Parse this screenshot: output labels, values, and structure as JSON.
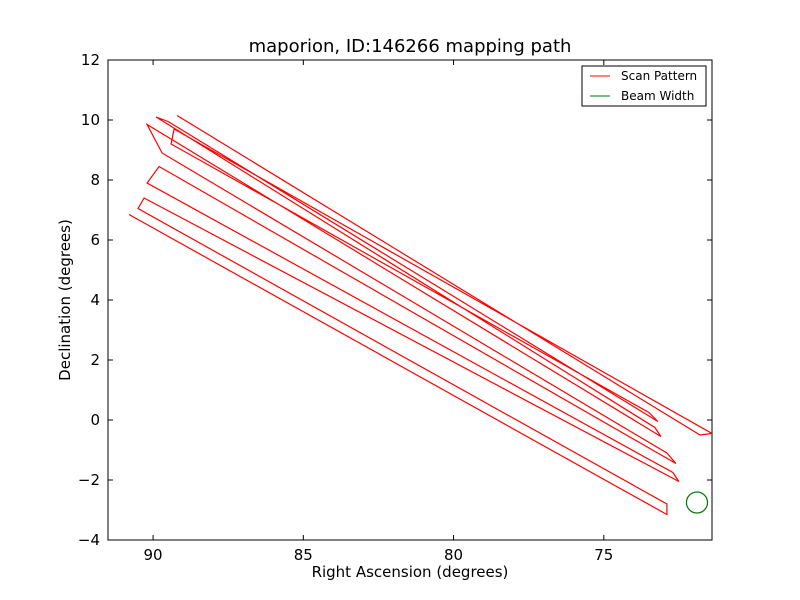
{
  "chart_data": {
    "type": "line",
    "title": "maporion, ID:146266 mapping path",
    "xlabel": "Right Ascension (degrees)",
    "ylabel": "Declination (degrees)",
    "xlim": [
      91.5,
      71.4
    ],
    "ylim": [
      -4,
      12
    ],
    "xticks": [
      90,
      85,
      80,
      75
    ],
    "yticks": [
      -4,
      -2,
      0,
      2,
      4,
      6,
      8,
      10,
      12
    ],
    "grid": false,
    "legend_position": "top-right",
    "series": [
      {
        "name": "Scan Pattern",
        "color": "#ff0000",
        "description_free": true,
        "x": [
          90.8,
          72.9,
          72.9,
          90.5,
          90.3,
          72.5,
          72.7,
          90.2,
          89.8,
          72.6,
          72.9,
          89.7,
          90.2,
          73.1,
          73.3,
          89.9,
          89.5,
          73.2,
          73.5,
          89.4,
          89.3,
          71.4,
          71.8,
          89.2
        ],
        "y": [
          6.85,
          -3.15,
          -2.8,
          7.05,
          7.4,
          -2.05,
          -1.75,
          7.9,
          8.45,
          -1.45,
          -1.1,
          8.9,
          9.85,
          -0.55,
          -0.25,
          10.1,
          9.95,
          -0.05,
          0.25,
          9.2,
          9.7,
          -0.45,
          -0.5,
          10.15
        ]
      }
    ],
    "beam": {
      "name": "Beam Width",
      "color": "#007700",
      "center": [
        71.9,
        -2.75
      ],
      "radius_deg": 0.35
    },
    "legend": [
      {
        "label": "Scan Pattern",
        "color": "#ff0000"
      },
      {
        "label": "Beam Width",
        "color": "#007700"
      }
    ]
  }
}
